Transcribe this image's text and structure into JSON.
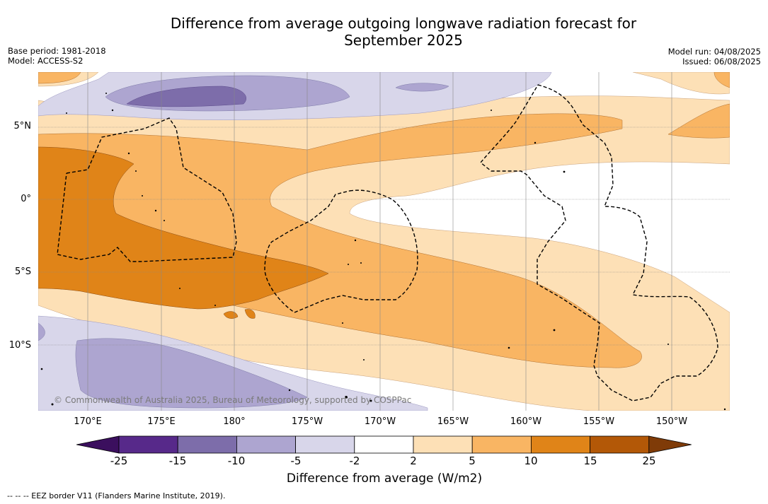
{
  "title": {
    "line1": "Difference from average outgoing longwave radiation forecast for",
    "line2": "September 2025"
  },
  "meta": {
    "base_period": "Base period: 1981-2018",
    "model": "Model: ACCESS-S2",
    "model_run": "Model run: 04/08/2025",
    "issued": "Issued: 06/08/2025"
  },
  "map": {
    "lat_labels": [
      "5°N",
      "0°",
      "5°S",
      "10°S"
    ],
    "lon_labels": [
      "170°E",
      "175°E",
      "180°",
      "175°W",
      "170°W",
      "165°W",
      "160°W",
      "155°W",
      "150°W"
    ],
    "copyright": "© Commonwealth of Australia 2025, Bureau of Meteorology, supported by COSPPac"
  },
  "legend": {
    "title": "Difference from average (W/m2)",
    "ticks": [
      "-25",
      "-15",
      "-10",
      "-5",
      "-2",
      "2",
      "5",
      "10",
      "15",
      "25"
    ],
    "colors": [
      "#3b0f5e",
      "#57298a",
      "#7d6daa",
      "#ada5d0",
      "#d8d6ea",
      "#ffffff",
      "#fde0b6",
      "#f9b563",
      "#e08418",
      "#b35807",
      "#7f3b08"
    ]
  },
  "footnote": "--  --  -- EEZ border V11 (Flanders Marine Institute, 2019)."
}
